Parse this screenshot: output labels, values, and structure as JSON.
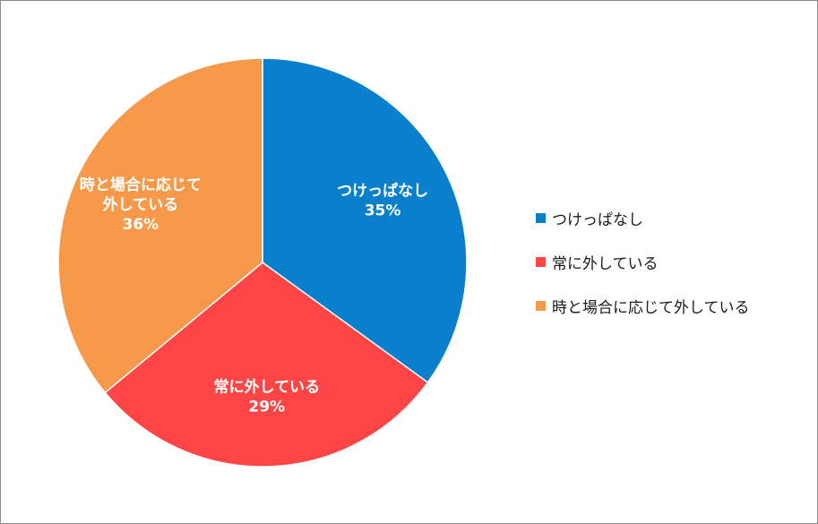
{
  "chart_data": {
    "type": "pie",
    "title": "",
    "slices": [
      {
        "label": "つけっぱなし",
        "label_lines": [
          "つけっぱなし"
        ],
        "value": 35,
        "value_text": "35%",
        "color": "#0a80cc"
      },
      {
        "label": "常に外している",
        "label_lines": [
          "常に外している"
        ],
        "value": 29,
        "value_text": "29%",
        "color": "#ff4545"
      },
      {
        "label": "時と場合に応じて外している",
        "label_lines": [
          "時と場合に応じて",
          "外している"
        ],
        "value": 36,
        "value_text": "36%",
        "color": "#f6994a"
      }
    ],
    "legend_placement": "right"
  }
}
